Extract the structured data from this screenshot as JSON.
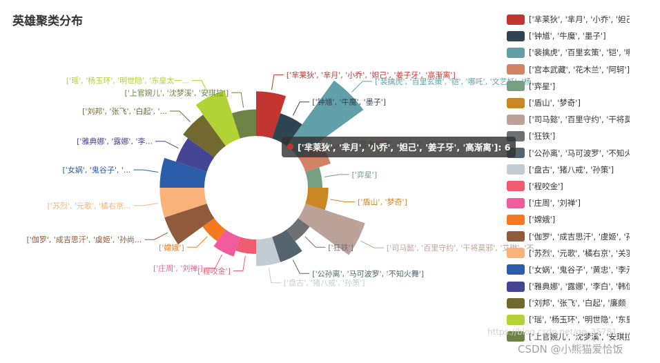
{
  "chart_data": {
    "type": "pie",
    "variant": "rose",
    "title": "英雄聚类分布",
    "slices": [
      {
        "label": "['芈莱狄', '芈月', '小乔', '妲己', '姜子牙', '高渐离']",
        "legend_text": "['芈莱狄', '芈月', '小乔', '妲己",
        "value": 6,
        "color": "#c23531"
      },
      {
        "label": "['钟馗', '牛魔', '墨子']",
        "legend_text": "['钟馗', '牛魔', '墨子']",
        "value": 3,
        "color": "#2f4554"
      },
      {
        "label": "['裴擒虎', '百里玄策', '铠', '哪吒', '文艺妖', '杨...",
        "legend_text": "['裴擒虎', '百里玄策', '铠', '哪",
        "value": 12,
        "color": "#61a0a8"
      },
      {
        "label": "['宫本武藏', '花木兰', '阿轲']",
        "legend_text": "['宫本武藏', '花木兰', '阿轲']",
        "value": 3,
        "color": "#d48265"
      },
      {
        "label": "['弈星']",
        "legend_text": "['弈星']",
        "value": 1,
        "color": "#749f83"
      },
      {
        "label": "['盾山', '梦奇']",
        "legend_text": "['盾山', '梦奇']",
        "value": 2,
        "color": "#ca8622"
      },
      {
        "label": "['司马懿', '百里守约', '干将莫邪', '艾琳', '不...",
        "legend_text": "['司马懿', '百里守约', '干将莫",
        "value": 9,
        "color": "#bda29a"
      },
      {
        "label": "['狂铁']",
        "legend_text": "['狂铁']",
        "value": 1,
        "color": "#6e7074"
      },
      {
        "label": "['公孙离', '马可波罗', '不知火舞']",
        "legend_text": "['公孙离', '马可波罗', '不知火",
        "value": 3,
        "color": "#546570"
      },
      {
        "label": "['盘古', '猪八戒', '孙策']",
        "legend_text": "['盘古', '猪八戒', '孙策']",
        "value": 3,
        "color": "#c4ccd3"
      },
      {
        "label": "['程咬金']",
        "legend_text": "['程咬金']",
        "value": 1,
        "color": "#f05b72"
      },
      {
        "label": "['庄周', '刘禅']",
        "legend_text": "['庄周', '刘禅']",
        "value": 2,
        "color": "#ef5b9c"
      },
      {
        "label": "['嫦娥']",
        "legend_text": "['嫦娥']",
        "value": 1,
        "color": "#f47920"
      },
      {
        "label": "['伽罗', '成吉思汗', '虞姬', '孙尚...",
        "legend_text": "['伽罗', '成吉思汗', '虞姬', '孙",
        "value": 6,
        "color": "#905a3d"
      },
      {
        "label": "['苏烈', '元歌', '橘右京...",
        "legend_text": "['苏烈', '元歌', '橘右京', '关羽",
        "value": 6,
        "color": "#fab27b"
      },
      {
        "label": "['女娲', '鬼谷子', '...",
        "legend_text": "['女娲', '鬼谷子', '黄忠', '李元",
        "value": 6,
        "color": "#2a5caa"
      },
      {
        "label": "['雅典娜', '露娜', '李...",
        "legend_text": "['雅典娜', '露娜', '李白', '韩信",
        "value": 4,
        "color": "#444693"
      },
      {
        "label": "['刘邦', '张飞', '白起', '...",
        "legend_text": "['刘邦', '张飞', '白起', '廉颇",
        "value": 5,
        "color": "#726930"
      },
      {
        "label": "['瑶', '杨玉环', '明世隐', '东皇太一...",
        "legend_text": "['瑶', '杨玉环', '明世隐', '东皇",
        "value": 7,
        "color": "#b2d235"
      },
      {
        "label": "['上官婉儿', '沈梦溪', '安琪拉']",
        "legend_text": "['上官婉儿', '沈梦溪', '安琪拉']",
        "value": 3,
        "color": "#6d8346"
      }
    ],
    "legend_position": "right",
    "tooltip": {
      "series_index": 0,
      "text": "['芈莱狄', '芈月', '小乔', '妲己', '姜子牙', '高渐离']: 6"
    }
  },
  "watermark": {
    "faint_text": "https://blog.csdn.net/qq_35781",
    "text": "CSDN @小熊猫爱恰饭"
  }
}
